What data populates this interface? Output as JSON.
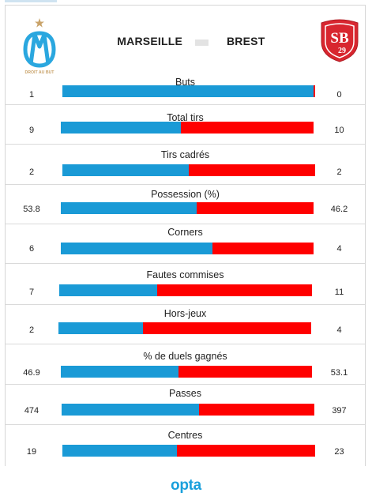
{
  "match": {
    "home_team": "MARSEILLE",
    "away_team": "BREST",
    "home_logo": {
      "icon": "olympique-marseille-crest-icon",
      "motto": "DROIT AU BUT"
    },
    "away_logo": {
      "icon": "stade-brestois-shield-icon",
      "monogram": "SB",
      "number": "29"
    }
  },
  "colors": {
    "home": "#1a9ad6",
    "away": "#ff0000"
  },
  "stats": [
    {
      "label": "Buts",
      "home": "1",
      "away": "0",
      "home_share": 0.995
    },
    {
      "label": "Total tirs",
      "home": "9",
      "away": "10",
      "home_share": 0.474
    },
    {
      "label": "Tirs cadrés",
      "home": "2",
      "away": "2",
      "home_share": 0.5
    },
    {
      "label": "Possession (%)",
      "home": "53.8",
      "away": "46.2",
      "home_share": 0.538
    },
    {
      "label": "Corners",
      "home": "6",
      "away": "4",
      "home_share": 0.6
    },
    {
      "label": "Fautes commises",
      "home": "7",
      "away": "11",
      "home_share": 0.389
    },
    {
      "label": "Hors-jeux",
      "home": "2",
      "away": "4",
      "home_share": 0.333
    },
    {
      "label": "% de duels gagnés",
      "home": "46.9",
      "away": "53.1",
      "home_share": 0.469
    },
    {
      "label": "Passes",
      "home": "474",
      "away": "397",
      "home_share": 0.544
    },
    {
      "label": "Centres",
      "home": "19",
      "away": "23",
      "home_share": 0.452
    }
  ],
  "footer": {
    "brand": "opta"
  }
}
